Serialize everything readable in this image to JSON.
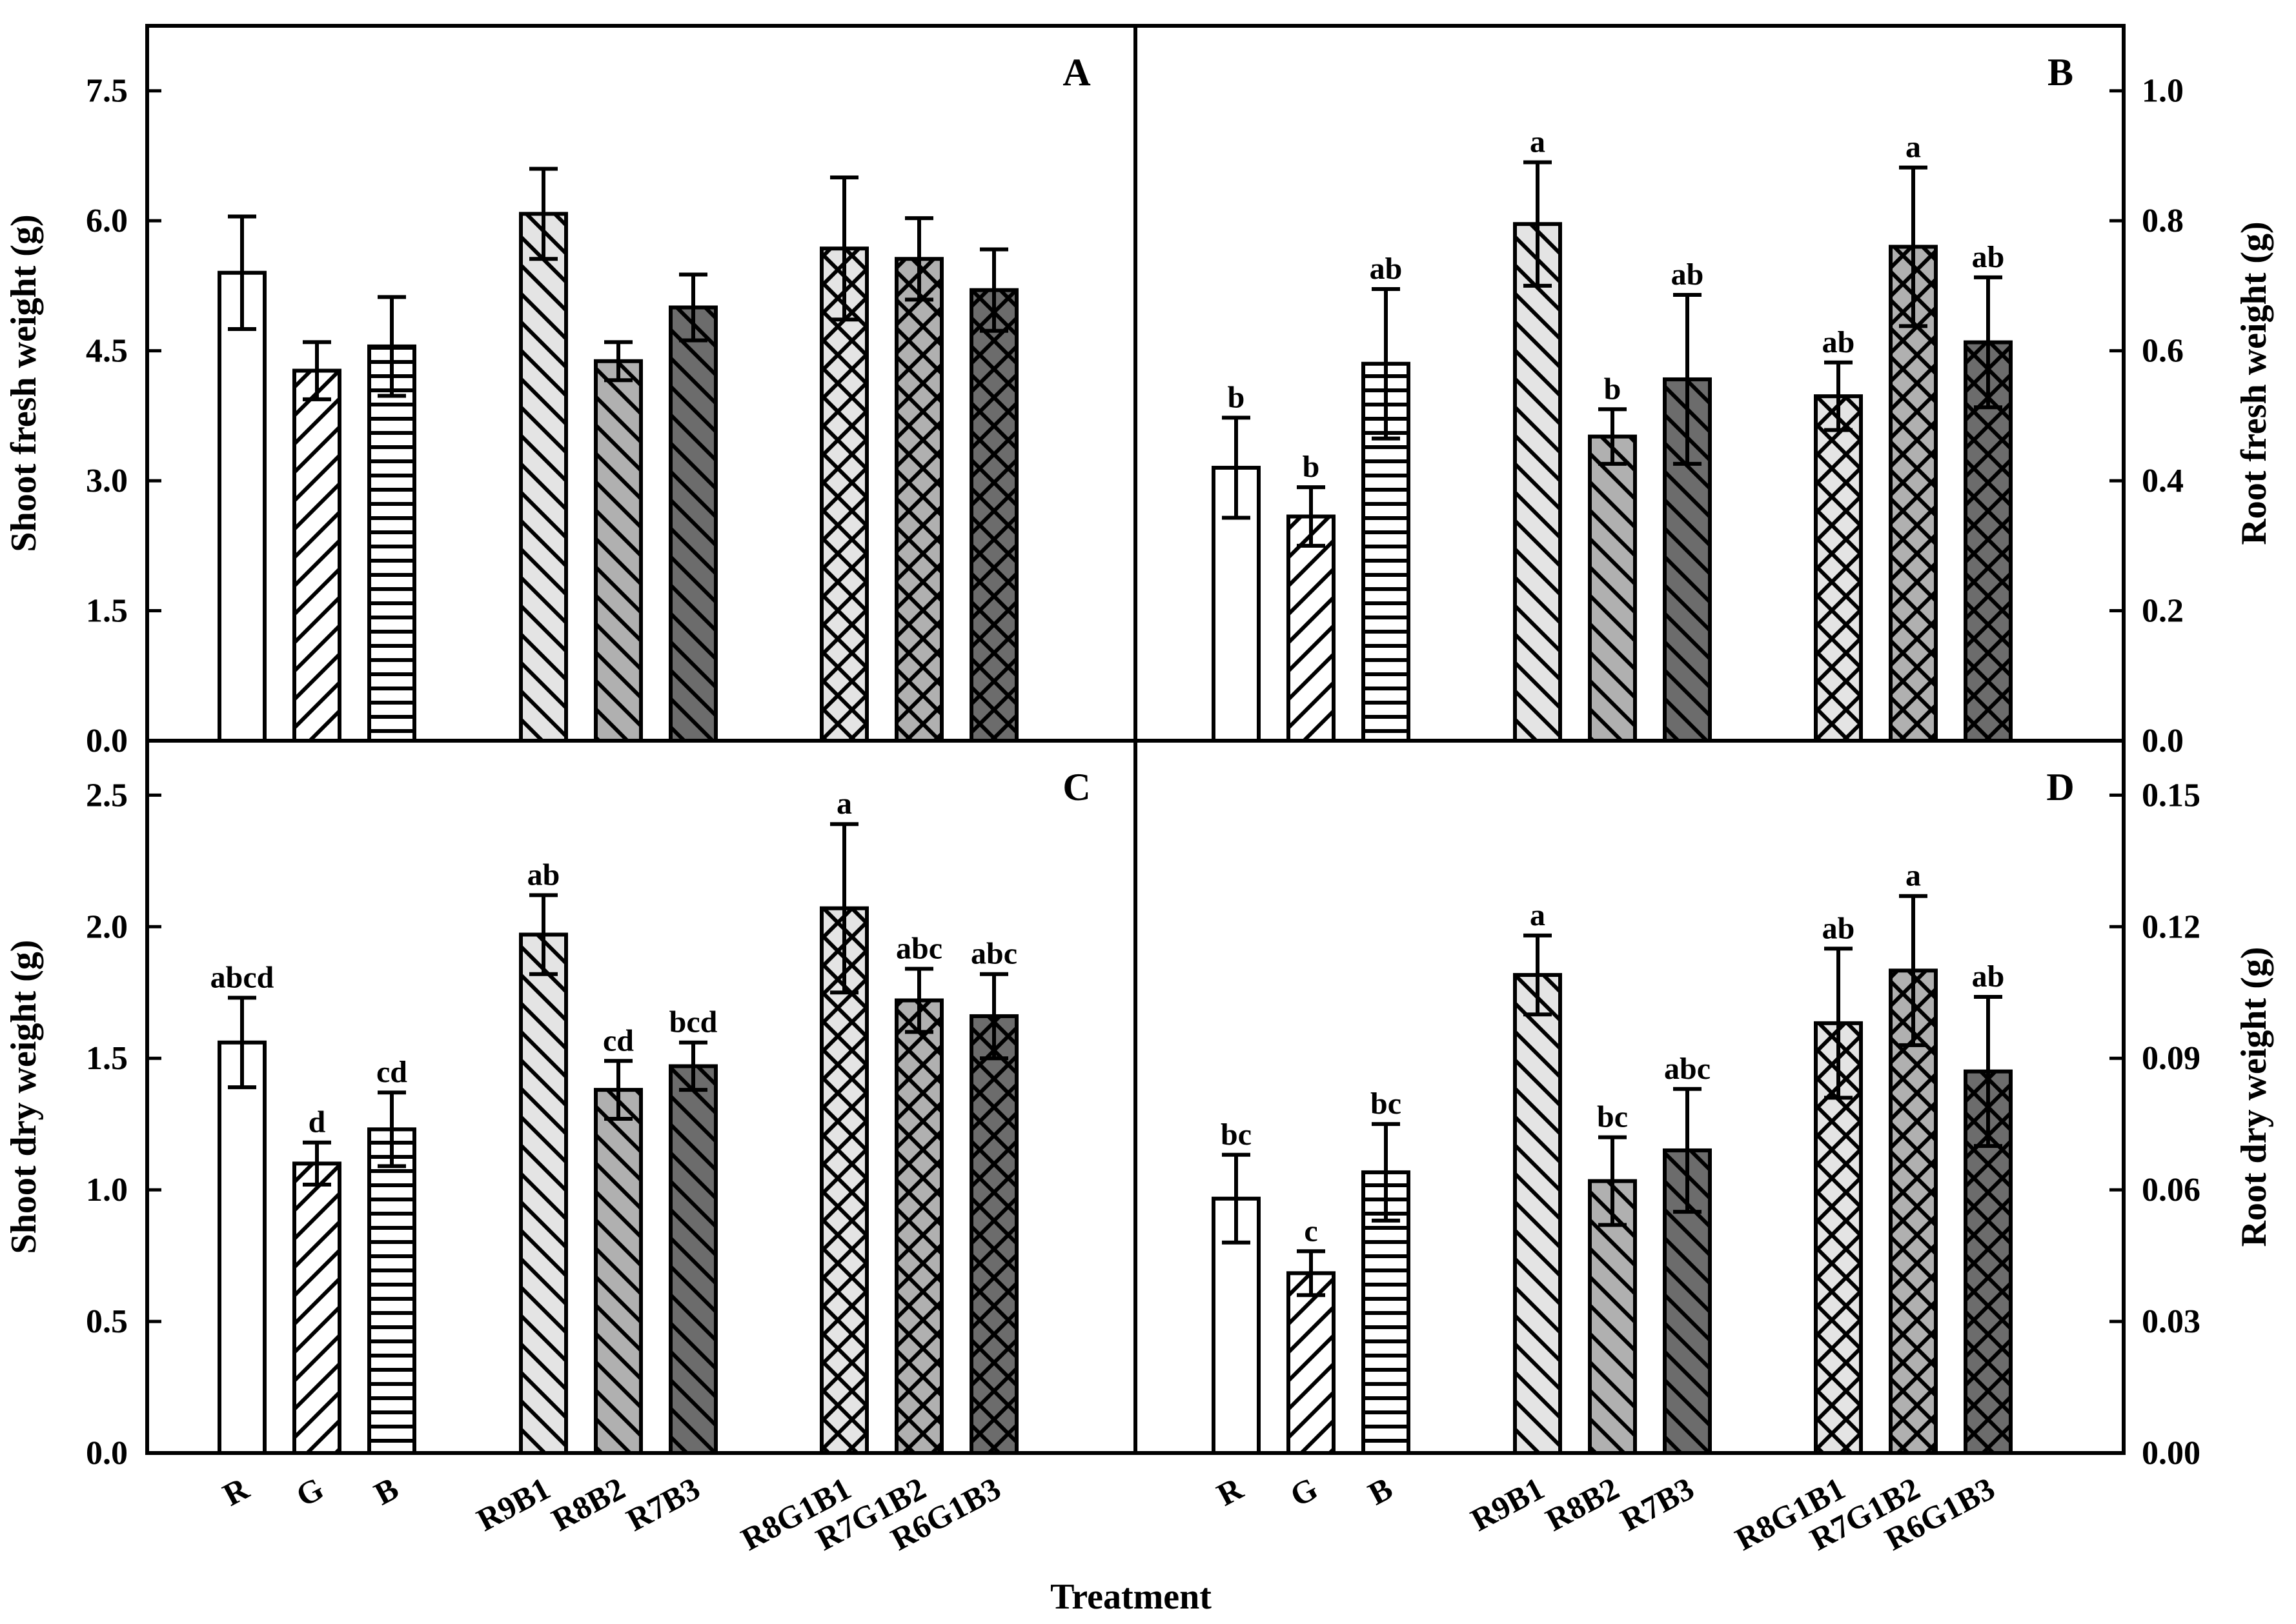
{
  "figure": {
    "xlabel": "Treatment",
    "categories": [
      "R",
      "G",
      "B",
      "R9B1",
      "R8B2",
      "R7B3",
      "R8G1B1",
      "R7G1B2",
      "R6G1B3"
    ],
    "colors": {
      "white": "#ffffff",
      "light_gray": "#e4e4e4",
      "mid_gray": "#b0b0b0",
      "dark_gray": "#6c6c6c",
      "frame": "#000000"
    },
    "bar_styles": [
      {
        "fill": "white",
        "pattern": "none"
      },
      {
        "fill": "white",
        "pattern": "diag-forward"
      },
      {
        "fill": "white",
        "pattern": "horizontal"
      },
      {
        "fill": "light_gray",
        "pattern": "diag-back"
      },
      {
        "fill": "mid_gray",
        "pattern": "diag-back"
      },
      {
        "fill": "dark_gray",
        "pattern": "diag-back"
      },
      {
        "fill": "light_gray",
        "pattern": "crosshatch"
      },
      {
        "fill": "mid_gray",
        "pattern": "crosshatch"
      },
      {
        "fill": "dark_gray",
        "pattern": "crosshatch"
      }
    ]
  },
  "chart_data": [
    {
      "panel": "A",
      "type": "bar",
      "ylabel": "Shoot fresh weight (g)",
      "ylim": [
        0,
        8.25
      ],
      "yticks": [
        "0.0",
        "1.5",
        "3.0",
        "4.5",
        "6.0",
        "7.5"
      ],
      "tick_values": [
        0,
        1.5,
        3.0,
        4.5,
        6.0,
        7.5
      ],
      "values": [
        5.4,
        4.27,
        4.55,
        6.08,
        4.38,
        5.0,
        5.68,
        5.56,
        5.2
      ],
      "errors": [
        0.65,
        0.33,
        0.57,
        0.52,
        0.22,
        0.38,
        0.82,
        0.47,
        0.47
      ],
      "sig_labels": []
    },
    {
      "panel": "B",
      "type": "bar",
      "ylabel": "Root fresh weight (g)",
      "ylim": [
        0,
        1.1
      ],
      "yticks": [
        "0.0",
        "0.2",
        "0.4",
        "0.6",
        "0.8",
        "1.0"
      ],
      "tick_values": [
        0,
        0.2,
        0.4,
        0.6,
        0.8,
        1.0
      ],
      "values": [
        0.42,
        0.345,
        0.58,
        0.795,
        0.468,
        0.556,
        0.53,
        0.76,
        0.613
      ],
      "errors": [
        0.077,
        0.045,
        0.115,
        0.095,
        0.042,
        0.13,
        0.052,
        0.122,
        0.1
      ],
      "sig_labels": [
        "b",
        "b",
        "ab",
        "a",
        "b",
        "ab",
        "ab",
        "a",
        "ab"
      ]
    },
    {
      "panel": "C",
      "type": "bar",
      "ylabel": "Shoot dry weight (g)",
      "ylim": [
        0,
        2.8
      ],
      "yticks": [
        "0.0",
        "0.5",
        "1.0",
        "1.5",
        "2.0",
        "2.5"
      ],
      "tick_values": [
        0,
        0.5,
        1.0,
        1.5,
        2.0,
        2.5
      ],
      "values": [
        1.56,
        1.1,
        1.23,
        1.97,
        1.38,
        1.47,
        2.07,
        1.72,
        1.66
      ],
      "errors": [
        0.17,
        0.08,
        0.14,
        0.15,
        0.11,
        0.09,
        0.32,
        0.12,
        0.16
      ],
      "sig_labels": [
        "abcd",
        "d",
        "cd",
        "ab",
        "cd",
        "bcd",
        "a",
        "abc",
        "abc"
      ]
    },
    {
      "panel": "D",
      "type": "bar",
      "ylabel": "Root dry weight (g)",
      "ylim": [
        0,
        0.168
      ],
      "yticks": [
        "0.00",
        "0.03",
        "0.06",
        "0.09",
        "0.12",
        "0.15"
      ],
      "tick_values": [
        0,
        0.03,
        0.06,
        0.09,
        0.12,
        0.15
      ],
      "values": [
        0.058,
        0.041,
        0.064,
        0.109,
        0.062,
        0.069,
        0.098,
        0.11,
        0.087
      ],
      "errors": [
        0.01,
        0.005,
        0.011,
        0.009,
        0.01,
        0.014,
        0.017,
        0.017,
        0.017
      ],
      "sig_labels": [
        "bc",
        "c",
        "bc",
        "a",
        "bc",
        "abc",
        "ab",
        "a",
        "ab"
      ]
    }
  ]
}
